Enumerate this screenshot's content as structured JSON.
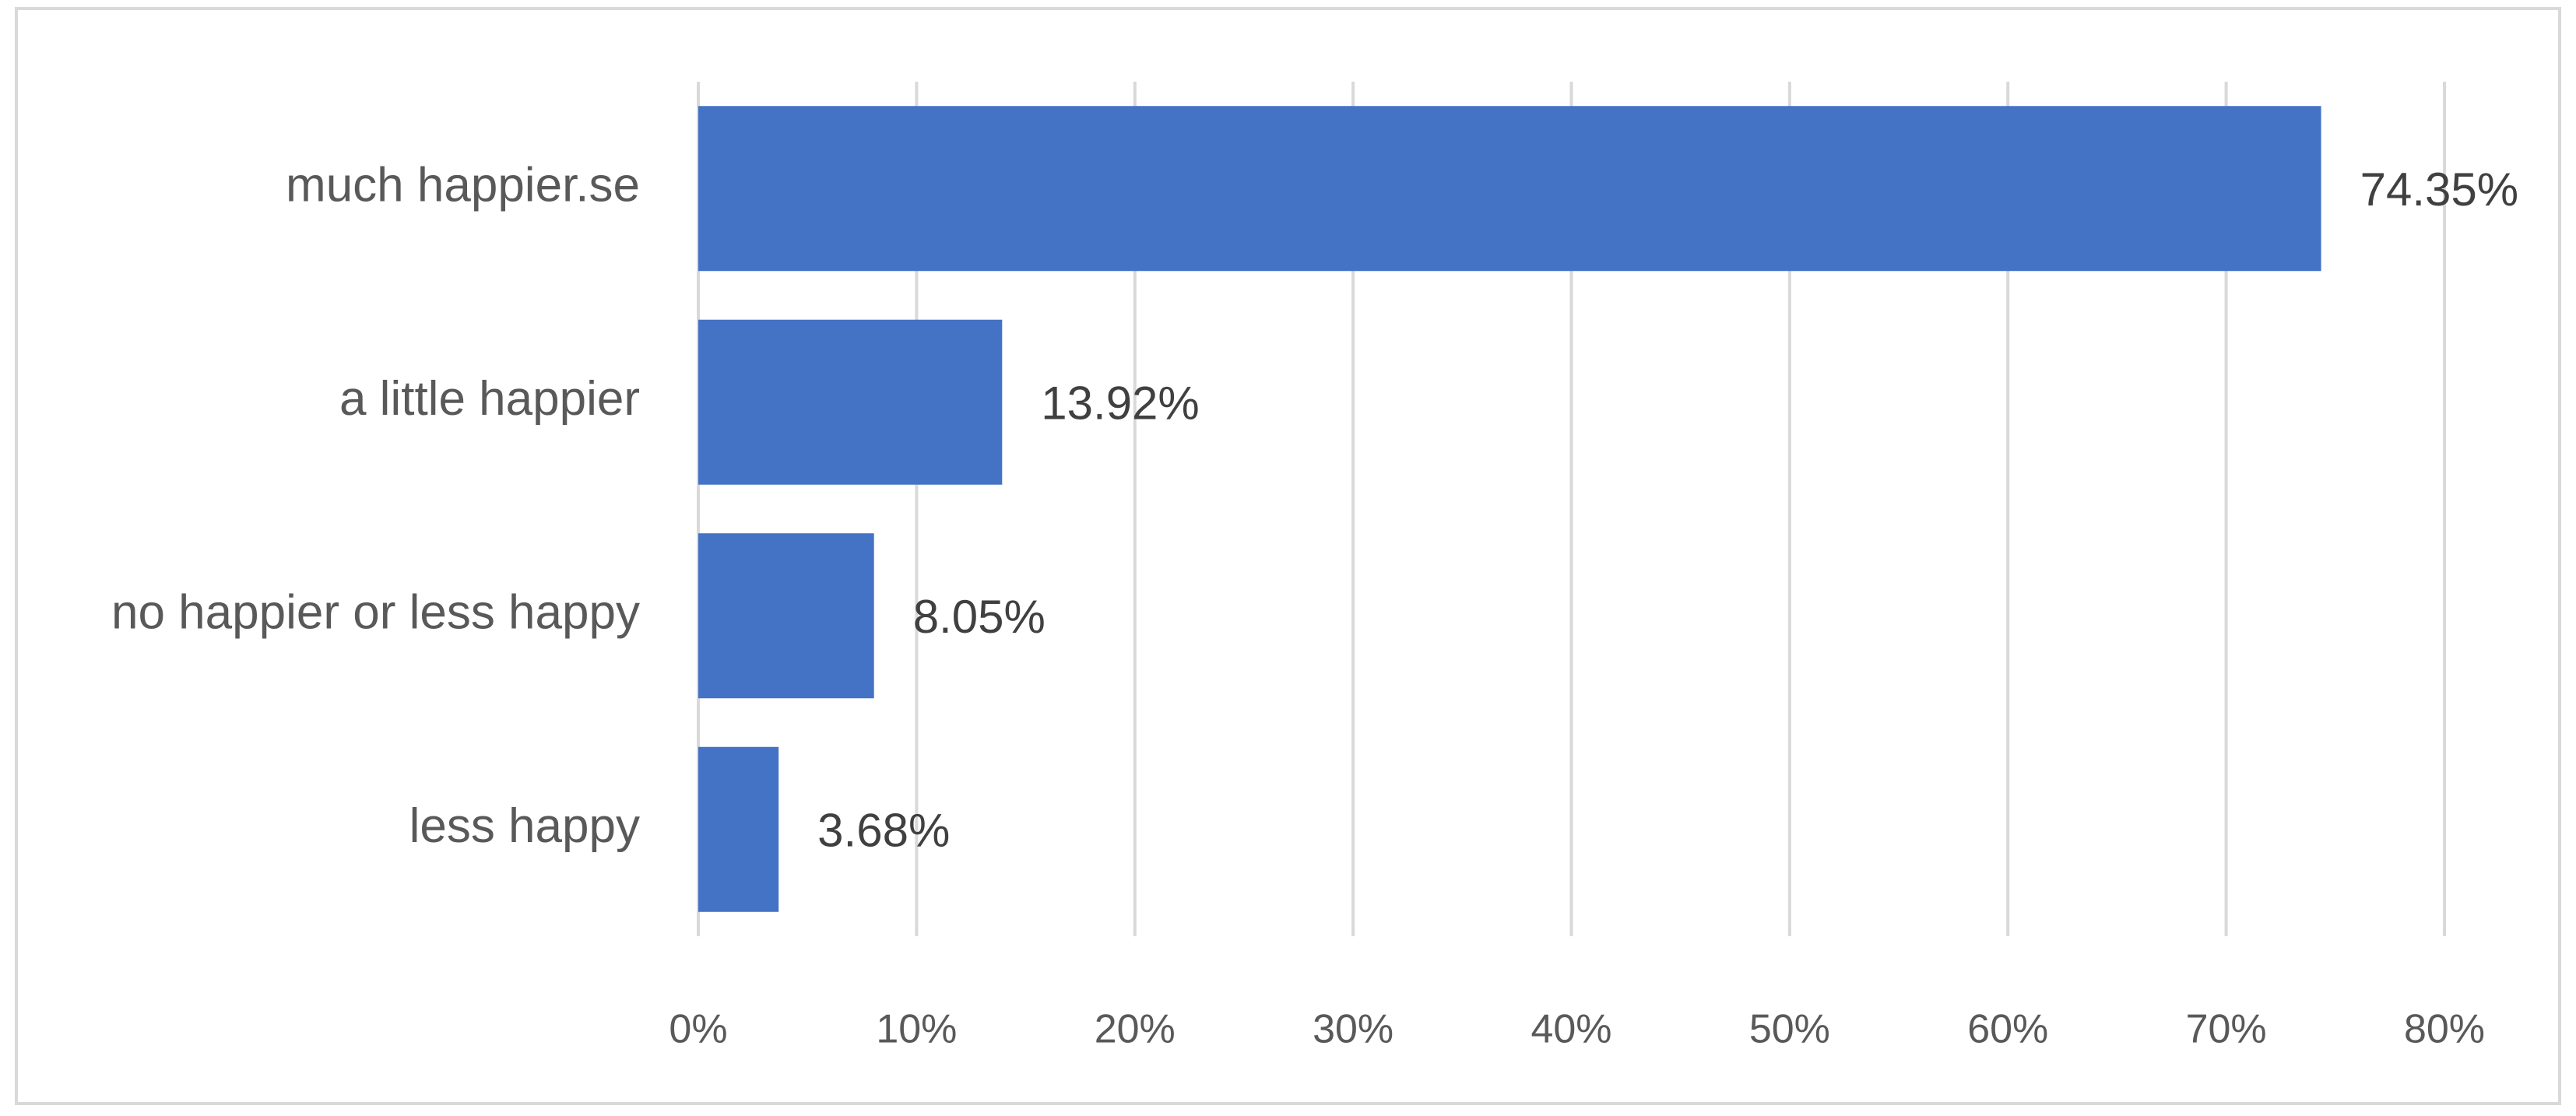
{
  "chart_data": {
    "type": "bar",
    "orientation": "horizontal",
    "categories": [
      "much happier.se",
      "a little happier",
      "no happier or less happy",
      "less happy"
    ],
    "values": [
      74.35,
      13.92,
      8.05,
      3.68
    ],
    "value_labels": [
      "74.35%",
      "13.92%",
      "8.05%",
      "3.68%"
    ],
    "color": "#4472c4",
    "xlim": [
      0,
      80
    ],
    "xticks": [
      {
        "value": 0,
        "label": "0%"
      },
      {
        "value": 10,
        "label": "10%"
      },
      {
        "value": 20,
        "label": "20%"
      },
      {
        "value": 30,
        "label": "30%"
      },
      {
        "value": 40,
        "label": "40%"
      },
      {
        "value": 50,
        "label": "50%"
      },
      {
        "value": 60,
        "label": "60%"
      },
      {
        "value": 70,
        "label": "70%"
      },
      {
        "value": 80,
        "label": "80%"
      }
    ],
    "grid": true
  }
}
